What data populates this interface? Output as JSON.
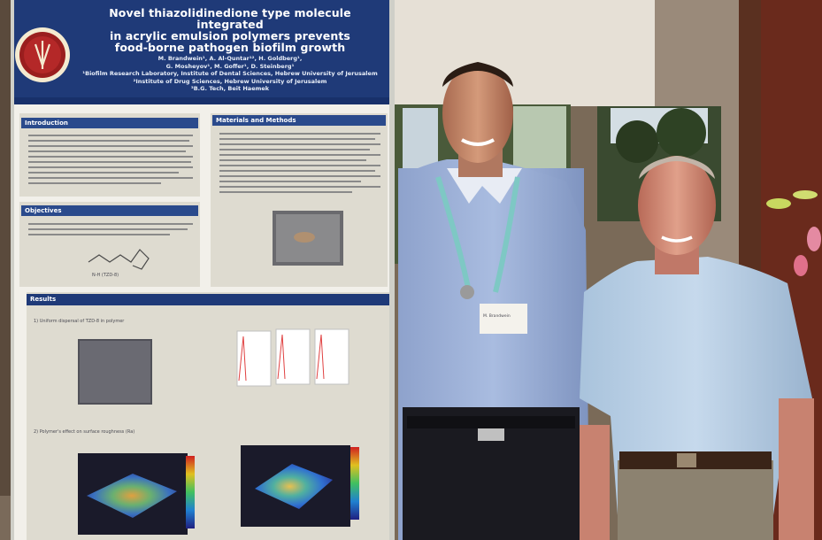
{
  "poster": {
    "title_lines": [
      "Novel thiazolidinedione type molecule integrated",
      "in acrylic emulsion polymers prevents",
      "food-borne pathogen biofilm growth"
    ],
    "authors_lines": [
      "M. Brandwein¹, A. Al-Quntar¹², H. Goldberg¹,",
      "G. Mosheyov¹, M. Goffer¹, D. Steinberg¹",
      "¹Biofilm Research Laboratory, Institute of Dental Sciences, Hebrew University of Jerusalem",
      "²Institute of Drug Sciences, Hebrew University of Jerusalem",
      "³B.G. Tech, Beit Haemek"
    ],
    "sections": {
      "introduction": "Introduction",
      "materials": "Materials and Methods",
      "objectives": "Objectives",
      "results": "Results"
    },
    "results_captions": [
      "1) Uniform dispersal of TZD-8 in polymer",
      "2) Polymer's effect on surface roughness (Ra)"
    ],
    "molecule_label": "N-H (TZD-8)",
    "badge_name": "M. Brandwein"
  }
}
